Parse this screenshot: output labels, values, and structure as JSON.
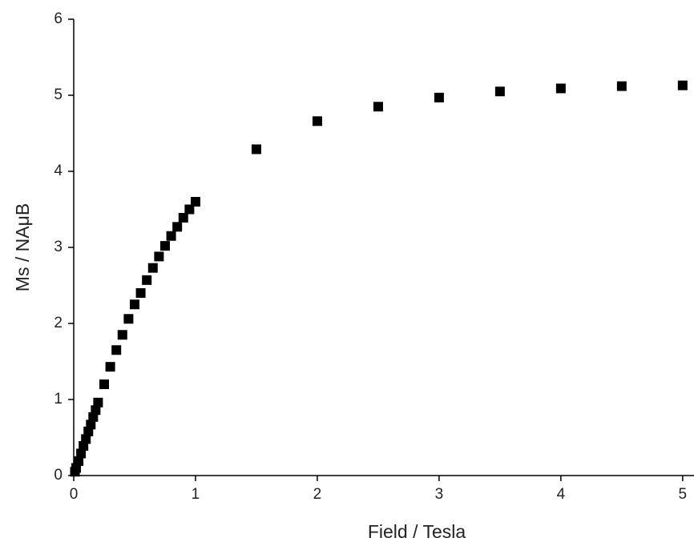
{
  "chart_data": {
    "type": "scatter",
    "xlabel": "Field / Tesla",
    "ylabel": "Ms / NAμB",
    "series": [
      {
        "color": "#000000",
        "x": [
          0.01,
          0.02,
          0.04,
          0.06,
          0.08,
          0.1,
          0.12,
          0.14,
          0.16,
          0.18,
          0.2,
          0.25,
          0.3,
          0.35,
          0.4,
          0.45,
          0.5,
          0.55,
          0.6,
          0.65,
          0.7,
          0.75,
          0.8,
          0.85,
          0.9,
          0.95,
          1.0,
          1.5,
          2.0,
          2.5,
          3.0,
          3.5,
          4.0,
          4.5,
          5.0
        ],
        "values": [
          0.05,
          0.1,
          0.19,
          0.29,
          0.39,
          0.48,
          0.58,
          0.67,
          0.77,
          0.86,
          0.96,
          1.2,
          1.43,
          1.65,
          1.85,
          2.06,
          2.25,
          2.4,
          2.57,
          2.73,
          2.88,
          3.02,
          3.15,
          3.27,
          3.39,
          3.5,
          3.6,
          4.29,
          4.66,
          4.85,
          4.97,
          5.05,
          5.09,
          5.12,
          5.13
        ]
      }
    ],
    "xlim": [
      0,
      5.08
    ],
    "xticks": [
      0,
      1,
      2,
      3,
      4,
      5
    ],
    "ylim": [
      0,
      6
    ],
    "yticks": [
      0,
      1,
      2,
      3,
      4,
      5,
      6
    ]
  }
}
